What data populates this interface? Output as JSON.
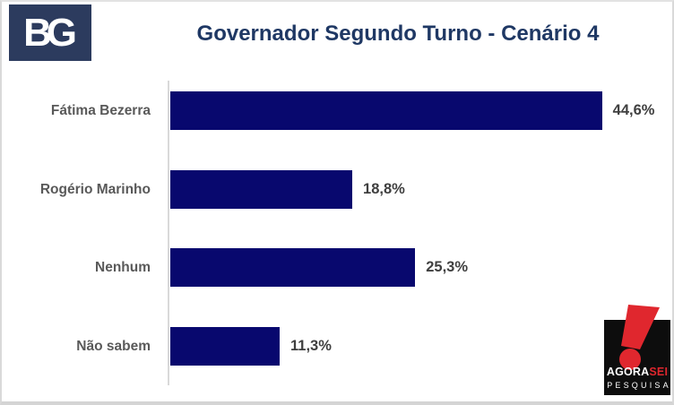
{
  "title": "Governador Segundo Turno - Cenário 4",
  "logos": {
    "bg_text": "BG",
    "agorasei": {
      "agora": "AGORA",
      "sei": "SEI",
      "pesquisa": "PESQUISA"
    }
  },
  "colors": {
    "bar": "#08086e",
    "title_text": "#1f3864",
    "category_text": "#595959",
    "value_text": "#3f3f3f",
    "bg_logo_background": "#2c3b5e",
    "agorasei_black": "#0d0d0d",
    "agorasei_red": "#e0272e",
    "axis_line": "#d9d9d9",
    "page_border": "#d9d9d9"
  },
  "chart_data": {
    "type": "bar",
    "orientation": "horizontal",
    "title": "Governador Segundo Turno - Cenário 4",
    "categories": [
      "Fátima Bezerra",
      "Rogério Marinho",
      "Nenhum",
      "Não sabem"
    ],
    "values": [
      44.6,
      18.8,
      25.3,
      11.3
    ],
    "value_labels": [
      "44,6%",
      "18,8%",
      "25,3%",
      "11,3%"
    ],
    "unit": "%",
    "xlim": [
      0,
      52
    ],
    "grid": false,
    "legend": false,
    "bar_color": "#08086e",
    "value_label_position": "right-of-bar"
  }
}
